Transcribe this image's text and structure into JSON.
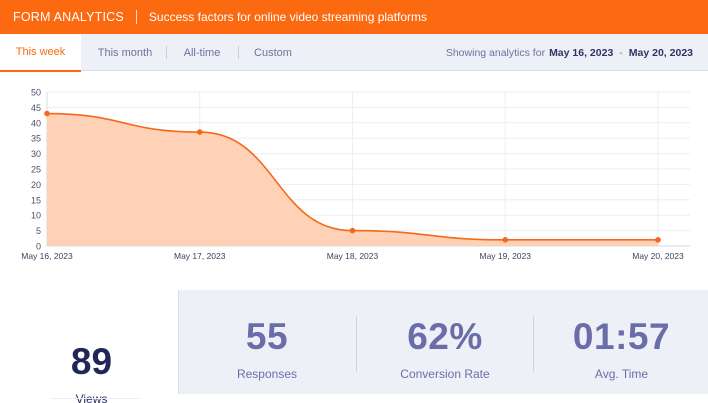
{
  "header": {
    "brand": "FORM ANALYTICS",
    "subtitle": "Success factors for online video streaming platforms"
  },
  "tabs": [
    {
      "label": "This week",
      "active": true
    },
    {
      "label": "This month",
      "active": false
    },
    {
      "label": "All-time",
      "active": false
    },
    {
      "label": "Custom",
      "active": false
    }
  ],
  "range": {
    "prefix": "Showing analytics for",
    "start": "May 16, 2023",
    "end": "May 20, 2023"
  },
  "chart_data": {
    "type": "area",
    "x": [
      "May 16, 2023",
      "May 17, 2023",
      "May 18, 2023",
      "May 19, 2023",
      "May 20, 2023"
    ],
    "values": [
      43,
      37,
      5,
      2,
      2
    ],
    "ylim": [
      0,
      50
    ],
    "yticks": [
      0,
      5,
      10,
      15,
      20,
      25,
      30,
      35,
      40,
      45,
      50
    ],
    "grid": true,
    "colors": {
      "line": "#f26a1b",
      "fill": "#ffd0b3"
    }
  },
  "stats": {
    "views": {
      "value": "89",
      "label": "Views"
    },
    "responses": {
      "value": "55",
      "label": "Responses"
    },
    "conversion": {
      "value": "62%",
      "label": "Conversion Rate"
    },
    "avg_time": {
      "value": "01:57",
      "label": "Avg. Time"
    }
  },
  "colors": {
    "accent": "#fb6a10",
    "panel": "#eef0f8",
    "dark_text": "#1f2659",
    "muted_text": "#6a6ea8"
  }
}
